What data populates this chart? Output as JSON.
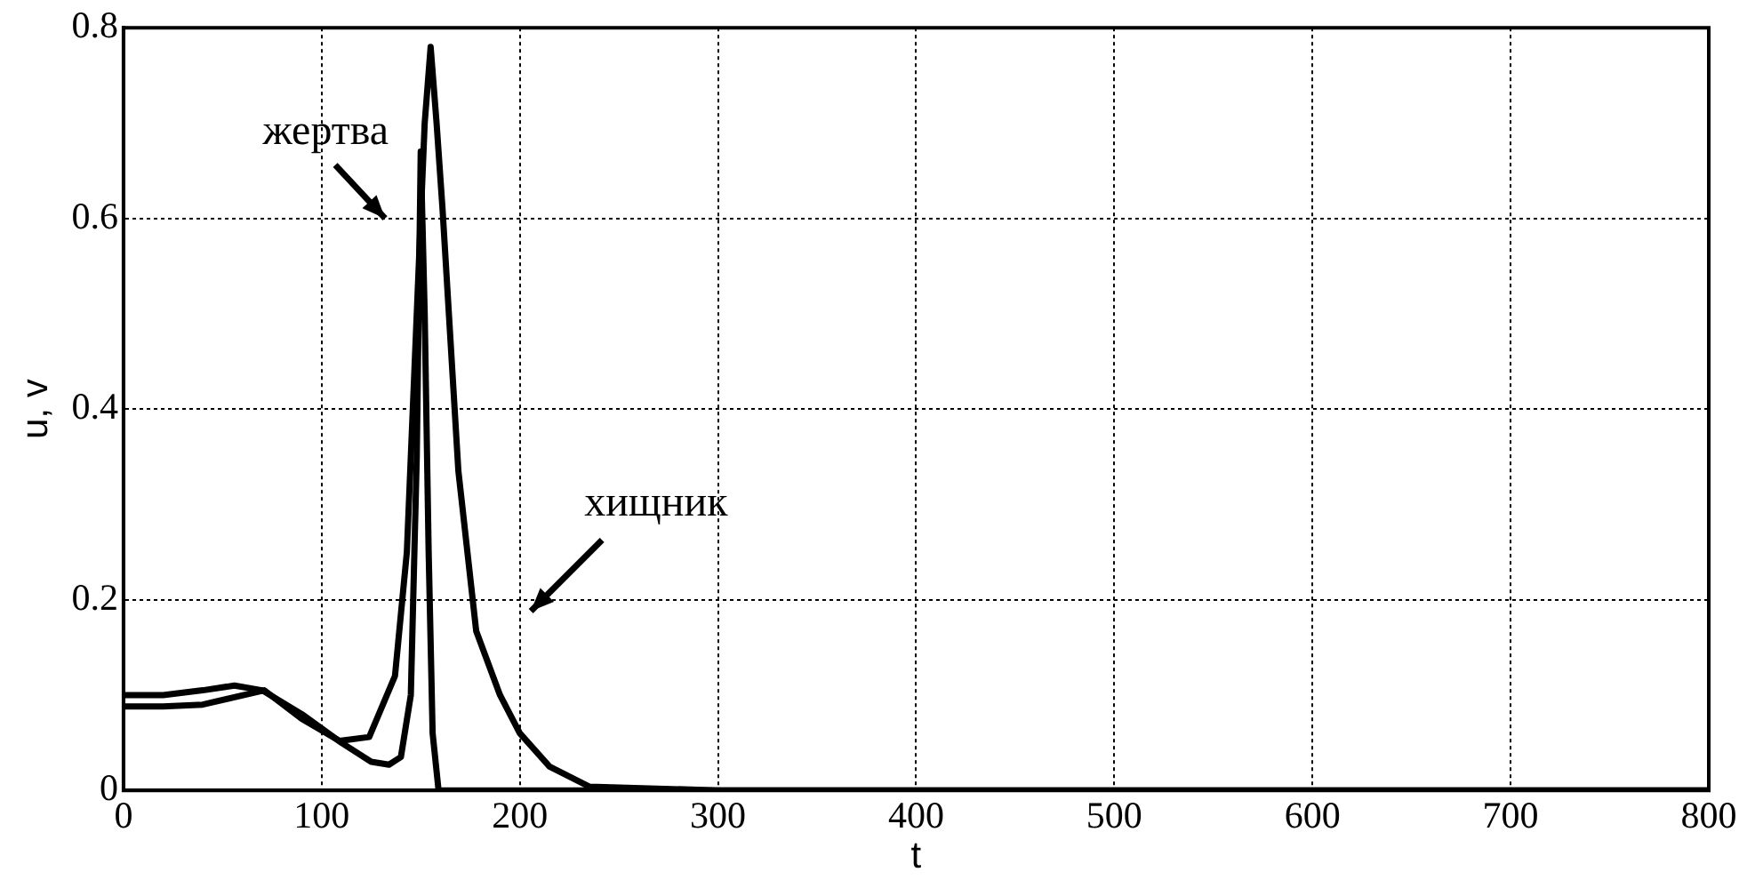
{
  "chart_data": {
    "type": "line",
    "xlabel": "t",
    "ylabel": "u, v",
    "xlim": [
      0,
      800
    ],
    "ylim": [
      0,
      0.8
    ],
    "xticks": [
      0,
      100,
      200,
      300,
      400,
      500,
      600,
      700,
      800
    ],
    "yticks": [
      0,
      0.2,
      0.4,
      0.6,
      0.8
    ],
    "grid": true,
    "line_style": "solid",
    "marker": "none",
    "legend": false,
    "series": [
      {
        "color": "#000000",
        "x": [
          0,
          20,
          40,
          56,
          70,
          90,
          110,
          125,
          134,
          140,
          145,
          148,
          150,
          152,
          154,
          156,
          159,
          170,
          200,
          300,
          400,
          500,
          600,
          700,
          800
        ],
        "values": [
          0.1,
          0.1,
          0.105,
          0.11,
          0.105,
          0.08,
          0.05,
          0.03,
          0.027,
          0.035,
          0.1,
          0.35,
          0.67,
          0.5,
          0.25,
          0.06,
          0,
          0,
          0,
          0,
          0,
          0,
          0,
          0,
          0
        ]
      },
      {
        "color": "#000000",
        "x": [
          0,
          20,
          40,
          71,
          90,
          109,
          124,
          137,
          143,
          148,
          152,
          155,
          158,
          161,
          169,
          178,
          190,
          200,
          215,
          235,
          300,
          400,
          500,
          600,
          700,
          800
        ],
        "values": [
          0.088,
          0.088,
          0.09,
          0.105,
          0.075,
          0.052,
          0.056,
          0.12,
          0.25,
          0.5,
          0.7,
          0.78,
          0.7,
          0.61,
          0.335,
          0.167,
          0.1,
          0.06,
          0.025,
          0.004,
          0,
          0,
          0,
          0,
          0,
          0
        ]
      }
    ],
    "annotations": [
      "жертва",
      "хищник"
    ]
  }
}
